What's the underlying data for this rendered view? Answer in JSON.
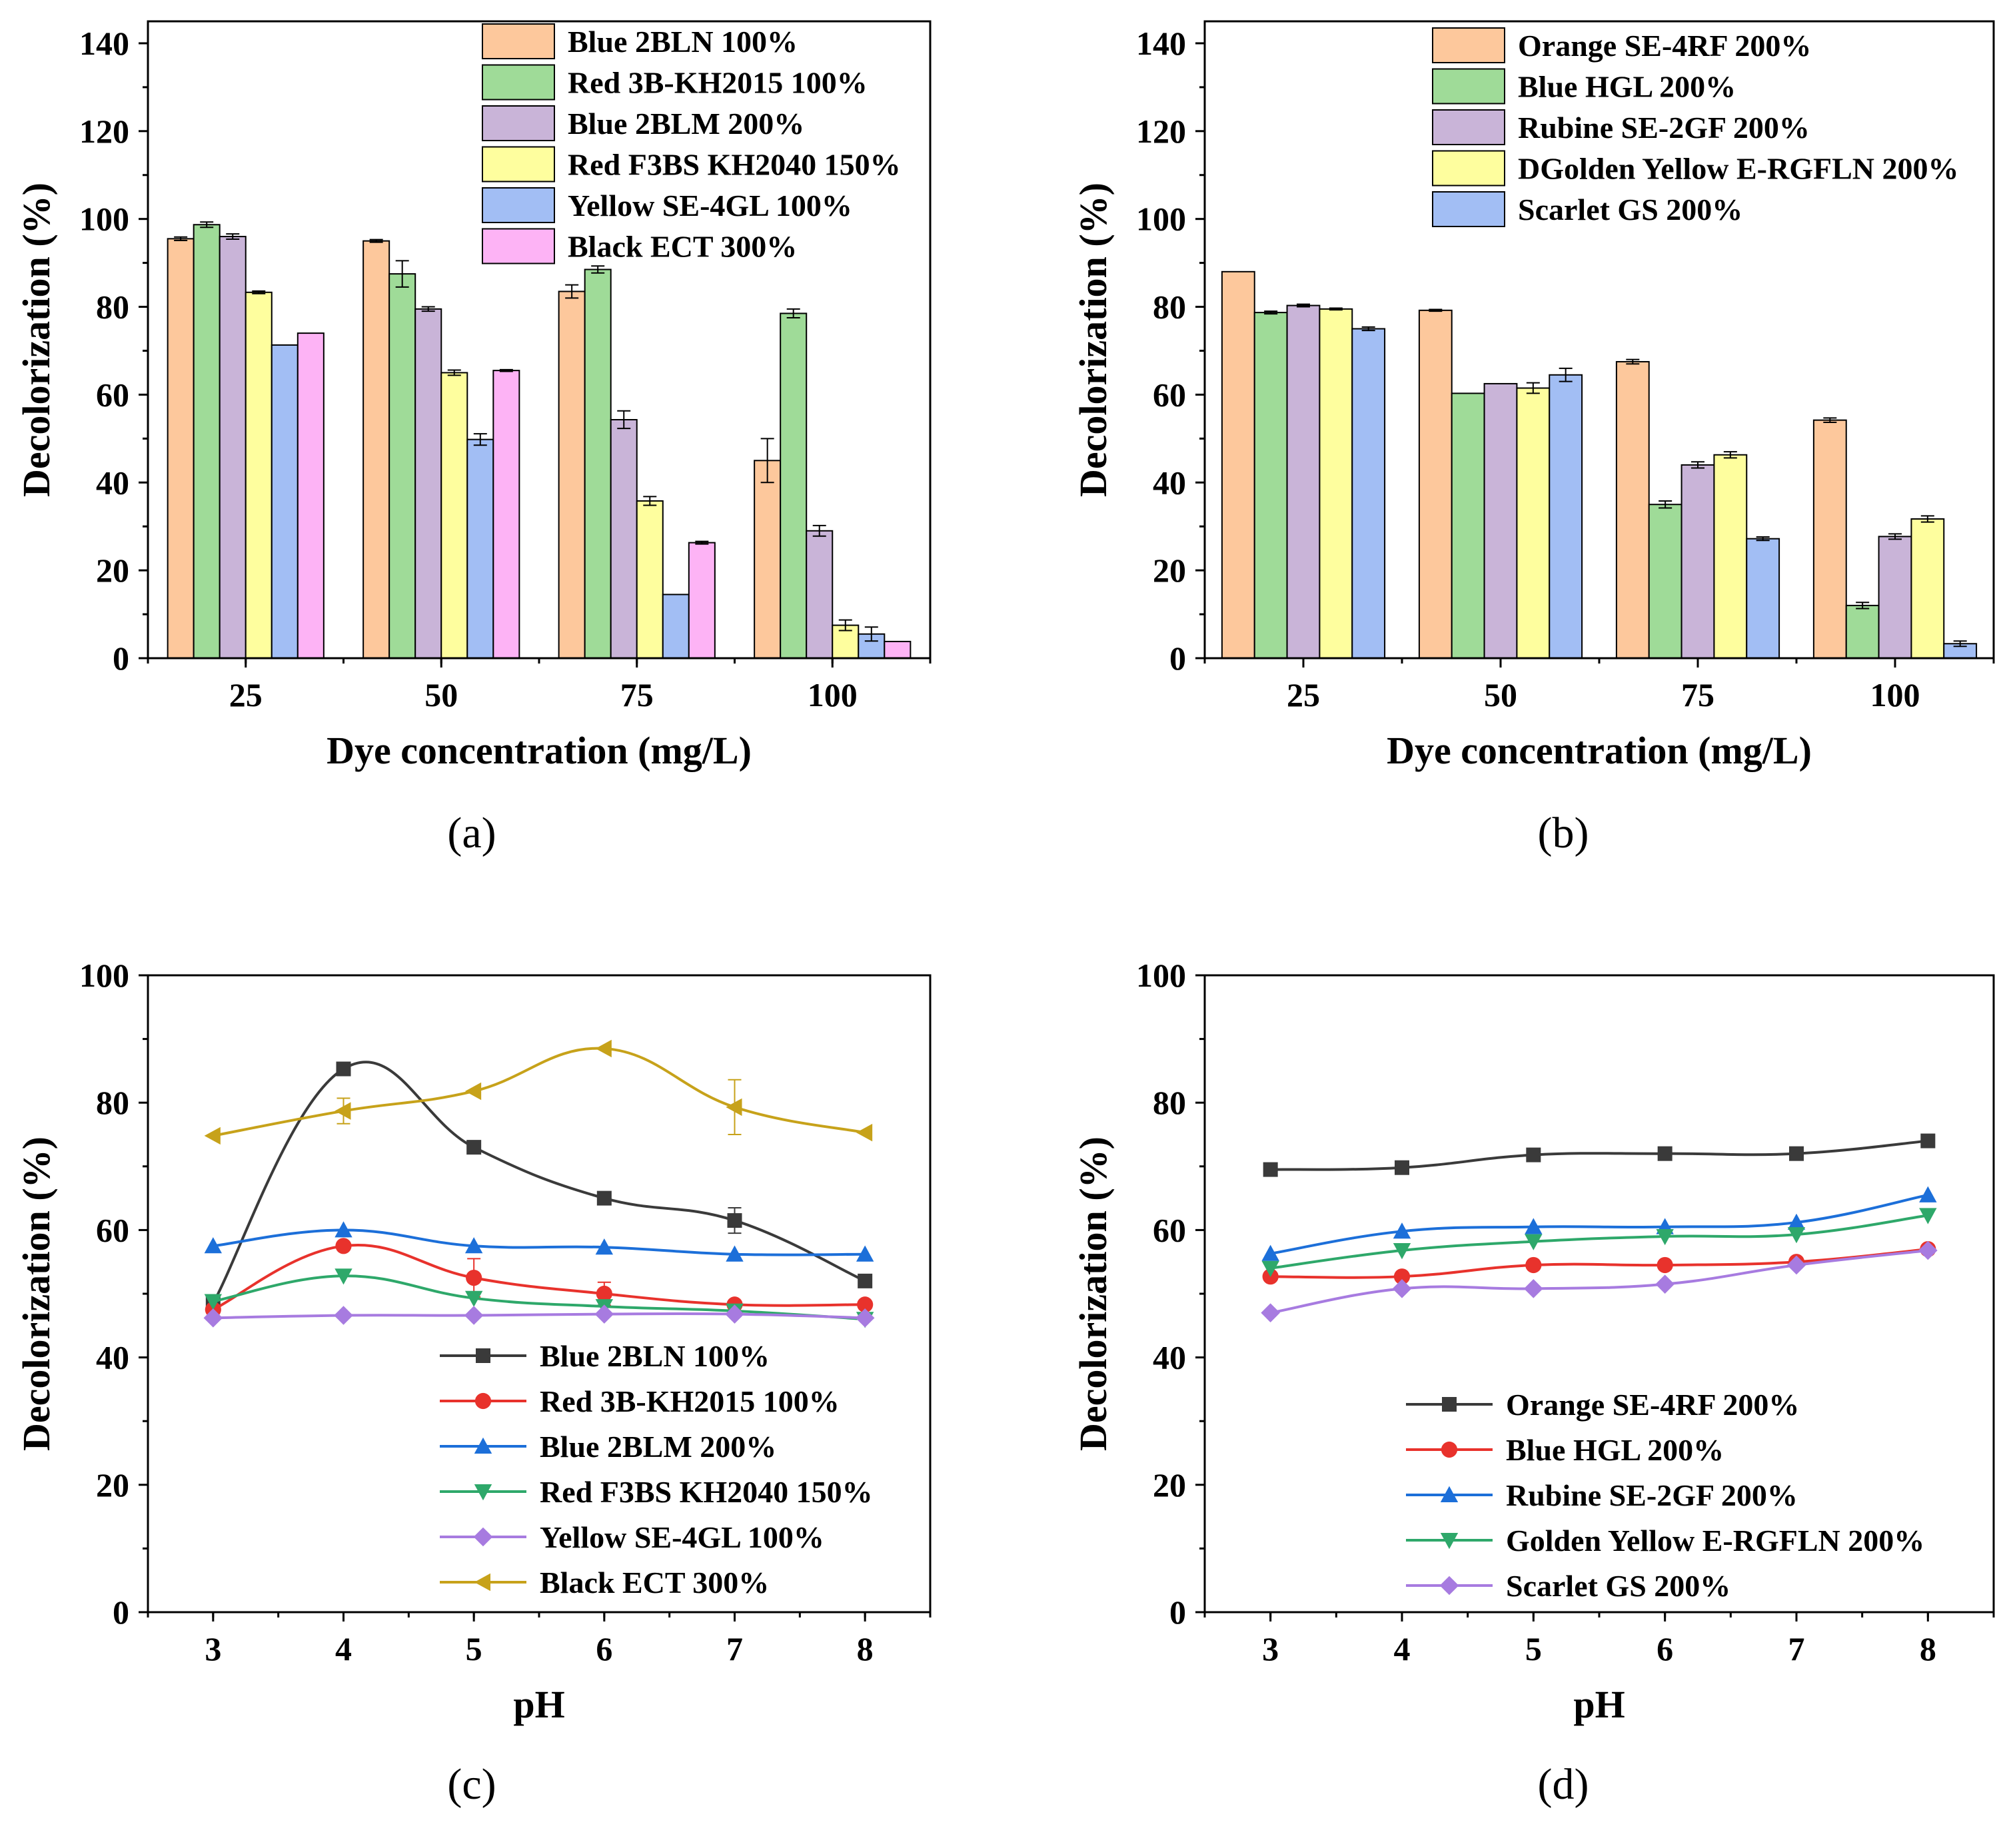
{
  "panels": [
    {
      "label": "(a)",
      "chart_data": {
        "type": "bar",
        "title": "",
        "xlabel": "Dye concentration (mg/L)",
        "ylabel": "Decolorization (%)",
        "ylim": [
          0,
          145
        ],
        "yticks": [
          0,
          20,
          40,
          60,
          80,
          100,
          120,
          140
        ],
        "ytick_labels": [
          "0",
          "20",
          "40",
          "60",
          "80",
          "100",
          "120",
          "140"
        ],
        "categories": [
          "25",
          "50",
          "75",
          "100"
        ],
        "legend_position": "top-right",
        "series": [
          {
            "name": "Blue 2BLN 100%",
            "color": "#FDC89C",
            "values": [
              95.5,
              95.0,
              83.5,
              45.0
            ],
            "errors": [
              0.4,
              0.3,
              1.5,
              5.0
            ]
          },
          {
            "name": "Red 3B-KH2015 100%",
            "color": "#9FDB98",
            "values": [
              98.7,
              87.5,
              88.5,
              78.5
            ],
            "errors": [
              0.6,
              3.0,
              0.8,
              1.0
            ]
          },
          {
            "name": "Blue 2BLM 200%",
            "color": "#C9B4D8",
            "values": [
              96.0,
              79.5,
              54.3,
              29.0
            ],
            "errors": [
              0.6,
              0.5,
              2.0,
              1.2
            ]
          },
          {
            "name": "Red F3BS KH2040 150%",
            "color": "#FEFE9E",
            "values": [
              83.3,
              65.0,
              35.8,
              7.5
            ],
            "errors": [
              0.3,
              0.6,
              1.0,
              1.2
            ]
          },
          {
            "name": "Yellow SE-4GL 100%",
            "color": "#A2BEF4",
            "values": [
              71.3,
              49.8,
              14.5,
              5.5
            ],
            "errors": [
              0,
              1.3,
              0,
              1.6
            ]
          },
          {
            "name": "Black ECT 300%",
            "color": "#FDB3F5",
            "values": [
              74.0,
              65.5,
              26.3,
              3.8
            ],
            "errors": [
              0,
              0.2,
              0.3,
              0
            ]
          }
        ]
      }
    },
    {
      "label": "(b)",
      "chart_data": {
        "type": "bar",
        "title": "",
        "xlabel": "Dye concentration (mg/L)",
        "ylabel": "Decolorization (%)",
        "ylim": [
          0,
          145
        ],
        "yticks": [
          0,
          20,
          40,
          60,
          80,
          100,
          120,
          140
        ],
        "ytick_labels": [
          "0",
          "20",
          "40",
          "60",
          "80",
          "100",
          "120",
          "140"
        ],
        "categories": [
          "25",
          "50",
          "75",
          "100"
        ],
        "legend_position": "top-right",
        "series": [
          {
            "name": "Orange SE-4RF 200%",
            "color": "#FDC89C",
            "values": [
              88.0,
              79.2,
              67.5,
              54.2
            ],
            "errors": [
              0,
              0.2,
              0.5,
              0.5
            ]
          },
          {
            "name": "Blue HGL 200%",
            "color": "#9FDB98",
            "values": [
              78.7,
              60.3,
              35.0,
              12.0
            ],
            "errors": [
              0.3,
              0,
              0.8,
              0.7
            ]
          },
          {
            "name": "Rubine SE-2GF 200%",
            "color": "#C9B4D8",
            "values": [
              80.3,
              62.5,
              44.0,
              27.7
            ],
            "errors": [
              0.3,
              0,
              0.7,
              0.6
            ]
          },
          {
            "name": "DGolden Yellow E-RGFLN 200%",
            "color": "#FEFE9E",
            "values": [
              79.5,
              61.5,
              46.3,
              31.7
            ],
            "errors": [
              0.2,
              1.2,
              0.7,
              0.7
            ]
          },
          {
            "name": "Scarlet GS 200%",
            "color": "#A2BEF4",
            "values": [
              75.0,
              64.5,
              27.2,
              3.3
            ],
            "errors": [
              0.4,
              1.5,
              0.4,
              0.6
            ]
          }
        ]
      }
    },
    {
      "label": "(c)",
      "chart_data": {
        "type": "line",
        "title": "",
        "xlabel": "pH",
        "ylabel": "Decolorization (%)",
        "xlim": [
          2.5,
          8.5
        ],
        "ylim": [
          0,
          100
        ],
        "xticks": [
          3,
          4,
          5,
          6,
          7,
          8
        ],
        "xtick_labels": [
          "3",
          "4",
          "5",
          "6",
          "7",
          "8"
        ],
        "yticks": [
          0,
          20,
          40,
          60,
          80,
          100
        ],
        "ytick_labels": [
          "0",
          "20",
          "40",
          "60",
          "80",
          "100"
        ],
        "legend_position": "bottom-center",
        "x": [
          3,
          4,
          5,
          6,
          7,
          8
        ],
        "series": [
          {
            "name": "Blue 2BLN 100%",
            "color": "#3A3A3A",
            "marker": "square",
            "values": [
              48.5,
              85.3,
              73.0,
              65.0,
              61.5,
              52.0
            ],
            "errors": [
              0,
              0,
              0,
              0,
              2.0,
              0
            ]
          },
          {
            "name": "Red 3B-KH2015 100%",
            "color": "#E8322C",
            "marker": "circle",
            "values": [
              47.5,
              57.5,
              52.5,
              50.0,
              48.3,
              48.3
            ],
            "errors": [
              0,
              0,
              3.0,
              1.8,
              0,
              0
            ]
          },
          {
            "name": "Blue 2BLM 200%",
            "color": "#1C6FD9",
            "marker": "triangle-up",
            "values": [
              57.5,
              60.0,
              57.5,
              57.3,
              56.2,
              56.2
            ],
            "errors": [
              0,
              0,
              0,
              0,
              0,
              0
            ]
          },
          {
            "name": "Red F3BS KH2040 150%",
            "color": "#2EA86A",
            "marker": "triangle-down",
            "values": [
              48.8,
              52.8,
              49.3,
              48.0,
              47.3,
              46.0
            ],
            "errors": [
              0,
              0,
              0,
              0,
              0,
              0
            ]
          },
          {
            "name": "Yellow SE-4GL 100%",
            "color": "#A77BE0",
            "marker": "diamond",
            "values": [
              46.2,
              46.6,
              46.6,
              46.8,
              46.8,
              46.2
            ],
            "errors": [
              0,
              0,
              0,
              0,
              0,
              0
            ]
          },
          {
            "name": "Black ECT 300%",
            "color": "#C7A21A",
            "marker": "triangle-left",
            "values": [
              74.8,
              78.7,
              81.8,
              88.5,
              79.3,
              75.3
            ],
            "errors": [
              0,
              2.0,
              0,
              0,
              4.3,
              0
            ]
          }
        ]
      }
    },
    {
      "label": "(d)",
      "chart_data": {
        "type": "line",
        "title": "",
        "xlabel": "pH",
        "ylabel": "Decolorization (%)",
        "xlim": [
          2.5,
          8.5
        ],
        "ylim": [
          0,
          100
        ],
        "xticks": [
          3,
          4,
          5,
          6,
          7,
          8
        ],
        "xtick_labels": [
          "3",
          "4",
          "5",
          "6",
          "7",
          "8"
        ],
        "yticks": [
          0,
          20,
          40,
          60,
          80,
          100
        ],
        "ytick_labels": [
          "0",
          "20",
          "40",
          "60",
          "80",
          "100"
        ],
        "legend_position": "bottom-center",
        "x": [
          3,
          4,
          5,
          6,
          7,
          8
        ],
        "series": [
          {
            "name": "Orange SE-4RF 200%",
            "color": "#3A3A3A",
            "marker": "square",
            "values": [
              69.5,
              69.8,
              71.8,
              72.0,
              72.0,
              74.0
            ],
            "errors": [
              0,
              0,
              0,
              0,
              0,
              0
            ]
          },
          {
            "name": "Blue HGL 200%",
            "color": "#E8322C",
            "marker": "circle",
            "values": [
              52.7,
              52.7,
              54.5,
              54.5,
              55.0,
              57.0
            ],
            "errors": [
              0,
              0,
              0,
              0,
              0,
              0
            ]
          },
          {
            "name": "Rubine SE-2GF 200%",
            "color": "#1C6FD9",
            "marker": "triangle-up",
            "values": [
              56.3,
              59.8,
              60.5,
              60.5,
              61.2,
              65.5
            ],
            "errors": [
              0,
              0,
              0,
              0,
              0,
              0
            ]
          },
          {
            "name": "Golden Yellow E-RGFLN 200%",
            "color": "#2EA86A",
            "marker": "triangle-down",
            "values": [
              54.0,
              56.8,
              58.2,
              59.0,
              59.3,
              62.3
            ],
            "errors": [
              0,
              0,
              0,
              0,
              0,
              0
            ]
          },
          {
            "name": "Scarlet GS 200%",
            "color": "#A77BE0",
            "marker": "diamond",
            "values": [
              47.0,
              50.8,
              50.8,
              51.5,
              54.5,
              56.8
            ],
            "errors": [
              0,
              0,
              0,
              0,
              0,
              0
            ]
          }
        ]
      }
    }
  ]
}
